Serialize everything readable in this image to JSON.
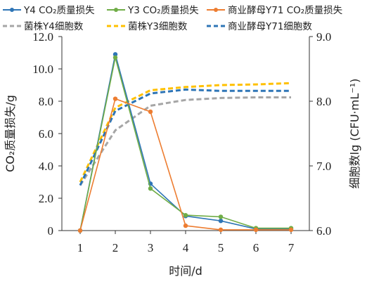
{
  "chart_data": {
    "type": "line",
    "x": [
      1,
      2,
      3,
      4,
      5,
      6,
      7
    ],
    "xlabel": "时间/d",
    "ylabel_left": "CO₂质量损失/g",
    "ylabel_right": "细胞数lg (CFU·mL⁻¹)",
    "ylim_left": [
      0,
      12
    ],
    "ylim_right": [
      6,
      9
    ],
    "xticks": [
      "1",
      "2",
      "3",
      "4",
      "5",
      "6",
      "7"
    ],
    "yticks_left": [
      "0",
      "2.0",
      "4.0",
      "6.0",
      "8.0",
      "10.0",
      "12.0"
    ],
    "yticks_right": [
      "6.0",
      "7.0",
      "8.0",
      "9.0"
    ],
    "legend_position": "top",
    "series": [
      {
        "name": "Y4 CO₂质量损失",
        "axis": "left",
        "style": "solid",
        "color": "#2e75b6",
        "marker": true,
        "values": [
          0,
          10.9,
          2.9,
          0.9,
          0.6,
          0.1,
          0.1
        ]
      },
      {
        "name": "Y3 CO₂质量损失",
        "axis": "left",
        "style": "solid",
        "color": "#70ad47",
        "marker": true,
        "values": [
          0,
          10.7,
          2.6,
          0.95,
          0.85,
          0.15,
          0.15
        ]
      },
      {
        "name": "商业酵母Y71 CO₂质量损失",
        "axis": "left",
        "style": "solid",
        "color": "#ed7d31",
        "marker": true,
        "values": [
          0,
          8.15,
          7.35,
          0.3,
          0.05,
          0.05,
          0.05
        ]
      },
      {
        "name": "菌株Y4细胞数",
        "axis": "right",
        "style": "dashed",
        "color": "#a6a6a6",
        "marker": false,
        "values": [
          6.7,
          7.55,
          7.93,
          8.02,
          8.05,
          8.06,
          8.06
        ]
      },
      {
        "name": "菌株Y3细胞数",
        "axis": "right",
        "style": "dashed",
        "color": "#ffc000",
        "marker": false,
        "values": [
          6.75,
          7.9,
          8.17,
          8.22,
          8.25,
          8.26,
          8.28
        ]
      },
      {
        "name": "商业酵母Y71细胞数",
        "axis": "right",
        "style": "dashed",
        "color": "#2e75b6",
        "marker": false,
        "values": [
          6.7,
          7.85,
          8.12,
          8.18,
          8.16,
          8.16,
          8.16
        ]
      }
    ]
  }
}
